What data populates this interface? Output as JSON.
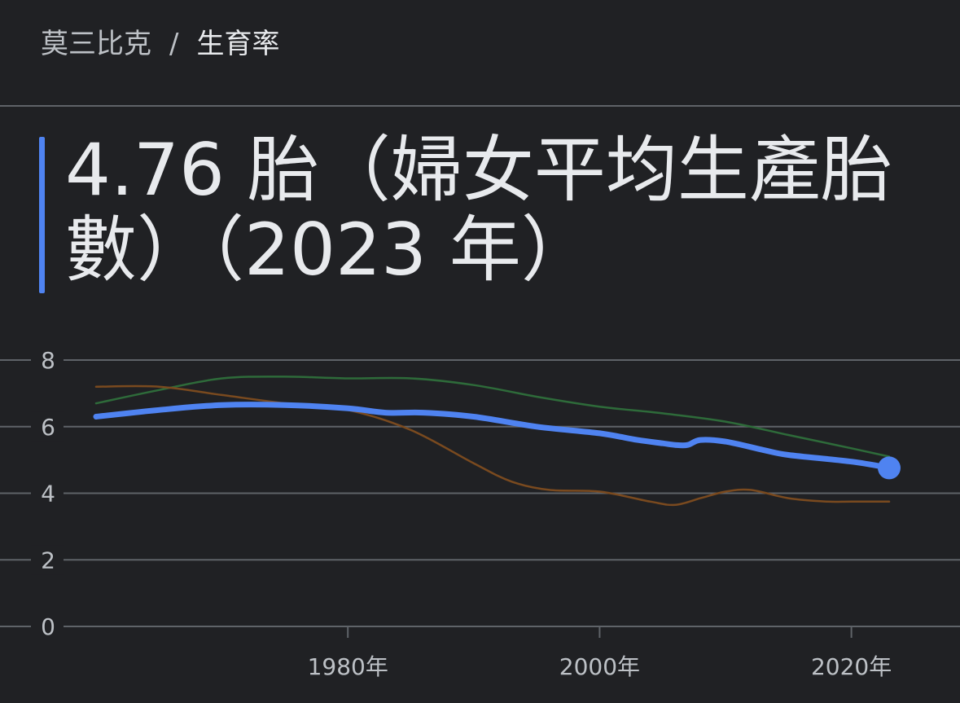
{
  "breadcrumb": {
    "country": "莫三比克",
    "separator": "/",
    "current": "生育率"
  },
  "headline": {
    "text": "4.76 胎（婦女平均生產胎數）（2023 年）"
  },
  "colors": {
    "background": "#202124",
    "primary_series": "#4f83f1",
    "comparison_green": "#2e6b3a",
    "comparison_brown": "#7a4a1f",
    "grid": "#5f6368",
    "text_muted": "#bdc1c6"
  },
  "chart_data": {
    "type": "line",
    "y_ticks": [
      "0",
      "2",
      "4",
      "6",
      "8"
    ],
    "x_ticks": [
      "1980年",
      "2000年",
      "2020年"
    ],
    "x_tick_values": [
      1980,
      2000,
      2020
    ],
    "xlim": [
      1959,
      2028
    ],
    "ylim": [
      0,
      8
    ],
    "grid": true,
    "series": [
      {
        "color": "#4f83f1",
        "highlight_last_point": true,
        "x": [
          1960,
          1965,
          1970,
          1975,
          1980,
          1983,
          1986,
          1990,
          1995,
          2000,
          2003,
          2005,
          2006,
          2007,
          2008,
          2010,
          2013,
          2015,
          2020,
          2023
        ],
        "y": [
          6.3,
          6.5,
          6.65,
          6.65,
          6.55,
          6.42,
          6.42,
          6.3,
          6.0,
          5.8,
          5.6,
          5.5,
          5.45,
          5.45,
          5.6,
          5.55,
          5.3,
          5.15,
          4.95,
          4.76
        ]
      },
      {
        "color": "#2e6b3a",
        "x": [
          1960,
          1965,
          1970,
          1975,
          1980,
          1985,
          1990,
          1995,
          2000,
          2005,
          2010,
          2015,
          2020,
          2023
        ],
        "y": [
          6.7,
          7.1,
          7.45,
          7.5,
          7.45,
          7.45,
          7.25,
          6.9,
          6.6,
          6.4,
          6.15,
          5.75,
          5.35,
          5.1
        ]
      },
      {
        "color": "#7a4a1f",
        "x": [
          1960,
          1965,
          1970,
          1975,
          1980,
          1985,
          1990,
          1993,
          1996,
          2000,
          2004,
          2006,
          2008,
          2010,
          2012,
          2015,
          2018,
          2020,
          2023
        ],
        "y": [
          7.2,
          7.2,
          6.95,
          6.7,
          6.5,
          5.9,
          4.9,
          4.35,
          4.1,
          4.05,
          3.75,
          3.65,
          3.85,
          4.05,
          4.1,
          3.85,
          3.75,
          3.75,
          3.75
        ]
      }
    ]
  }
}
